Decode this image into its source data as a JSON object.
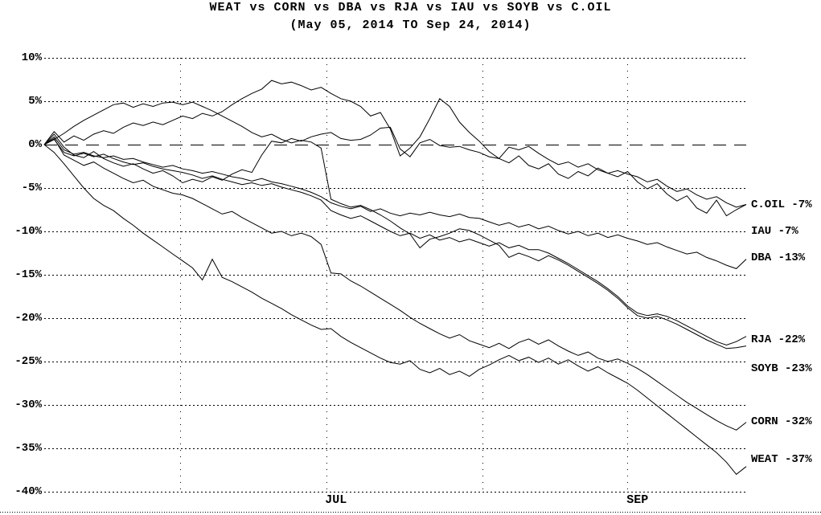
{
  "chart": {
    "title": "WEAT vs CORN vs DBA vs RJA vs IAU vs SOYB vs C.OIL",
    "subtitle": "(May 05, 2014 TO Sep 24, 2014)",
    "colors": {
      "foreground": "#000000",
      "background": "#ffffff"
    }
  },
  "chart_data": {
    "type": "line",
    "title": "WEAT vs CORN vs DBA vs RJA vs IAU vs SOYB vs C.OIL",
    "subtitle": "(May 05, 2014 TO Sep 24, 2014)",
    "x_range_days": 142,
    "x_day_step": 2,
    "x_start": "May 05, 2014",
    "x_end": "Sep 24, 2014",
    "ylim": [
      -40,
      10
    ],
    "y_tick_step": 5,
    "y_tick_labels": [
      "10%",
      "5%",
      "0%",
      "-5%",
      "-10%",
      "-15%",
      "-20%",
      "-25%",
      "-30%",
      "-35%",
      "-40%"
    ],
    "grid": "dotted horizontal every 5%, long-dashed zero baseline, dotted vertical at month starts, dotted bottom border",
    "legend_position": "right of line ends",
    "x_gridline_days": [
      27.6,
      57.2,
      88.8,
      118.0
    ],
    "x_tick_labels": [
      {
        "label": "JUL",
        "day": 59
      },
      {
        "label": "SEP",
        "day": 120
      }
    ],
    "series": [
      {
        "name": "C.OIL",
        "end_label": "C.OIL -7%",
        "final_value": -7,
        "label_pct": -6.9,
        "values": [
          0,
          1.5,
          0.3,
          1.0,
          0.5,
          1.2,
          1.6,
          1.3,
          2.0,
          2.5,
          2.2,
          2.6,
          2.3,
          2.8,
          3.3,
          3.0,
          3.6,
          3.3,
          3.8,
          4.6,
          5.3,
          5.9,
          6.4,
          7.4,
          7.0,
          7.2,
          6.8,
          6.3,
          6.6,
          5.9,
          5.3,
          5.0,
          4.4,
          3.3,
          3.7,
          1.8,
          -1.3,
          -0.4,
          0.9,
          3.0,
          5.3,
          4.4,
          2.6,
          1.4,
          0.4,
          -0.8,
          -1.6,
          -2.1,
          -1.3,
          -2.4,
          -2.8,
          -2.2,
          -3.4,
          -3.9,
          -3.1,
          -3.6,
          -2.7,
          -3.3,
          -3.7,
          -3.1,
          -4.3,
          -5.1,
          -4.5,
          -5.7,
          -6.5,
          -5.9,
          -7.3,
          -7.9,
          -6.4,
          -8.2,
          -7.5,
          -6.9
        ]
      },
      {
        "name": "IAU",
        "end_label": "IAU -7%",
        "final_value": -7,
        "label_pct": -10.0,
        "values": [
          0,
          1.2,
          -0.3,
          -1.2,
          -1.5,
          -0.8,
          -1.6,
          -2.1,
          -2.5,
          -2.2,
          -2.8,
          -3.3,
          -3.0,
          -3.6,
          -4.4,
          -4.0,
          -4.3,
          -3.7,
          -4.1,
          -3.4,
          -2.9,
          -3.2,
          -1.2,
          0.4,
          0.2,
          0.7,
          0.4,
          0.9,
          1.2,
          1.4,
          0.7,
          0.5,
          0.6,
          1.1,
          1.9,
          2.0,
          -0.5,
          -1.4,
          0.2,
          0.6,
          -0.1,
          -0.3,
          -0.2,
          -0.6,
          -0.9,
          -1.4,
          -1.6,
          -0.3,
          -0.6,
          -0.2,
          -1.0,
          -1.7,
          -2.3,
          -2.0,
          -2.6,
          -2.2,
          -2.9,
          -3.3,
          -3.0,
          -3.4,
          -3.7,
          -4.3,
          -4.0,
          -4.8,
          -5.4,
          -5.1,
          -5.8,
          -6.3,
          -6.0,
          -6.7,
          -7.2,
          -6.9
        ]
      },
      {
        "name": "DBA",
        "end_label": "DBA -13%",
        "final_value": -13,
        "label_pct": -13.1,
        "values": [
          0,
          0.9,
          -0.6,
          -1.1,
          -0.9,
          -1.3,
          -1.5,
          -1.3,
          -1.7,
          -1.6,
          -2.0,
          -2.3,
          -2.6,
          -2.4,
          -2.8,
          -3.0,
          -3.3,
          -3.1,
          -3.4,
          -3.7,
          -3.9,
          -4.2,
          -3.9,
          -4.3,
          -4.5,
          -4.8,
          -5.1,
          -5.5,
          -6.0,
          -6.7,
          -7.1,
          -7.4,
          -7.1,
          -7.7,
          -7.4,
          -7.9,
          -8.2,
          -7.9,
          -8.1,
          -7.8,
          -8.1,
          -8.3,
          -8.0,
          -8.4,
          -8.5,
          -8.9,
          -9.3,
          -9.0,
          -9.5,
          -9.2,
          -9.7,
          -9.4,
          -9.9,
          -10.3,
          -10.0,
          -10.5,
          -10.2,
          -10.7,
          -10.4,
          -10.8,
          -11.1,
          -11.5,
          -11.3,
          -11.8,
          -12.2,
          -12.6,
          -12.4,
          -13.0,
          -13.4,
          -13.9,
          -14.3,
          -13.2
        ]
      },
      {
        "name": "RJA",
        "end_label": "RJA -22%",
        "final_value": -22,
        "label_pct": -22.5,
        "values": [
          0,
          0.6,
          -0.9,
          -1.3,
          -1.0,
          -1.4,
          -1.1,
          -1.6,
          -2.0,
          -2.3,
          -2.1,
          -2.5,
          -2.8,
          -3.0,
          -3.2,
          -3.5,
          -3.9,
          -3.6,
          -4.0,
          -4.3,
          -4.6,
          -4.4,
          -4.7,
          -4.5,
          -4.9,
          -5.2,
          -5.5,
          -5.9,
          -6.4,
          -7.6,
          -8.1,
          -8.5,
          -8.2,
          -8.8,
          -9.4,
          -10.0,
          -10.5,
          -10.2,
          -10.8,
          -10.4,
          -11.0,
          -10.7,
          -11.2,
          -10.9,
          -11.3,
          -11.7,
          -11.3,
          -11.9,
          -11.6,
          -12.1,
          -12.1,
          -12.5,
          -13.1,
          -13.7,
          -14.4,
          -15.1,
          -15.8,
          -16.6,
          -17.5,
          -18.6,
          -19.4,
          -19.7,
          -19.5,
          -19.8,
          -20.3,
          -20.9,
          -21.5,
          -22.1,
          -22.7,
          -23.1,
          -22.7,
          -22.1
        ]
      },
      {
        "name": "SOYB",
        "end_label": "SOYB -23%",
        "final_value": -23,
        "label_pct": -25.8,
        "values": [
          0,
          0.6,
          1.3,
          2.1,
          2.8,
          3.4,
          4.0,
          4.6,
          4.8,
          4.3,
          4.7,
          4.4,
          4.8,
          4.9,
          4.6,
          4.9,
          4.4,
          3.9,
          3.3,
          2.7,
          2.1,
          1.4,
          0.9,
          1.2,
          0.6,
          0.2,
          0.5,
          0.3,
          -0.4,
          -6.3,
          -6.8,
          -7.2,
          -7.0,
          -7.5,
          -8.1,
          -8.8,
          -9.6,
          -10.3,
          -11.9,
          -10.9,
          -10.6,
          -10.2,
          -9.7,
          -9.9,
          -10.4,
          -11.0,
          -11.6,
          -13.0,
          -12.5,
          -12.9,
          -13.4,
          -12.8,
          -13.3,
          -13.9,
          -14.6,
          -15.3,
          -16.0,
          -16.8,
          -17.7,
          -18.8,
          -19.7,
          -20.0,
          -19.8,
          -20.2,
          -20.7,
          -21.3,
          -21.9,
          -22.5,
          -23.0,
          -23.5,
          -23.4,
          -23.2
        ]
      },
      {
        "name": "CORN",
        "end_label": "CORN -32%",
        "final_value": -32,
        "label_pct": -31.9,
        "values": [
          0,
          0.7,
          -1.2,
          -1.8,
          -2.4,
          -2.0,
          -2.7,
          -3.3,
          -3.9,
          -4.4,
          -4.1,
          -4.8,
          -5.2,
          -5.6,
          -5.8,
          -6.2,
          -6.8,
          -7.4,
          -8.0,
          -7.7,
          -8.4,
          -9.0,
          -9.6,
          -10.2,
          -10.0,
          -10.5,
          -10.2,
          -10.6,
          -11.5,
          -14.8,
          -14.9,
          -15.7,
          -16.3,
          -17.0,
          -17.7,
          -18.4,
          -19.1,
          -19.9,
          -20.6,
          -21.2,
          -21.8,
          -22.3,
          -21.9,
          -22.6,
          -23.0,
          -23.4,
          -22.9,
          -23.5,
          -22.8,
          -22.4,
          -23.0,
          -22.5,
          -23.2,
          -23.8,
          -24.3,
          -23.9,
          -24.6,
          -25.0,
          -24.7,
          -25.2,
          -25.8,
          -26.5,
          -27.3,
          -28.1,
          -28.9,
          -29.7,
          -30.4,
          -31.1,
          -31.8,
          -32.4,
          -32.9,
          -32.0
        ]
      },
      {
        "name": "WEAT",
        "end_label": "WEAT -37%",
        "final_value": -37,
        "label_pct": -36.3,
        "values": [
          0,
          -0.9,
          -2.2,
          -3.6,
          -5.0,
          -6.2,
          -7.0,
          -7.6,
          -8.5,
          -9.3,
          -10.2,
          -11.0,
          -11.8,
          -12.6,
          -13.4,
          -14.2,
          -15.6,
          -13.2,
          -15.3,
          -15.8,
          -16.4,
          -17.0,
          -17.7,
          -18.3,
          -18.9,
          -19.6,
          -20.2,
          -20.8,
          -21.3,
          -21.2,
          -22.1,
          -22.8,
          -23.4,
          -24.0,
          -24.6,
          -25.1,
          -25.3,
          -24.9,
          -25.9,
          -26.3,
          -25.8,
          -26.5,
          -26.1,
          -26.7,
          -25.9,
          -25.4,
          -24.8,
          -24.3,
          -24.9,
          -24.5,
          -25.1,
          -24.6,
          -25.3,
          -24.8,
          -25.5,
          -26.1,
          -25.6,
          -26.3,
          -26.9,
          -27.5,
          -28.3,
          -29.2,
          -30.1,
          -31.0,
          -31.9,
          -32.8,
          -33.7,
          -34.6,
          -35.5,
          -36.6,
          -38.0,
          -37.1
        ]
      }
    ]
  }
}
